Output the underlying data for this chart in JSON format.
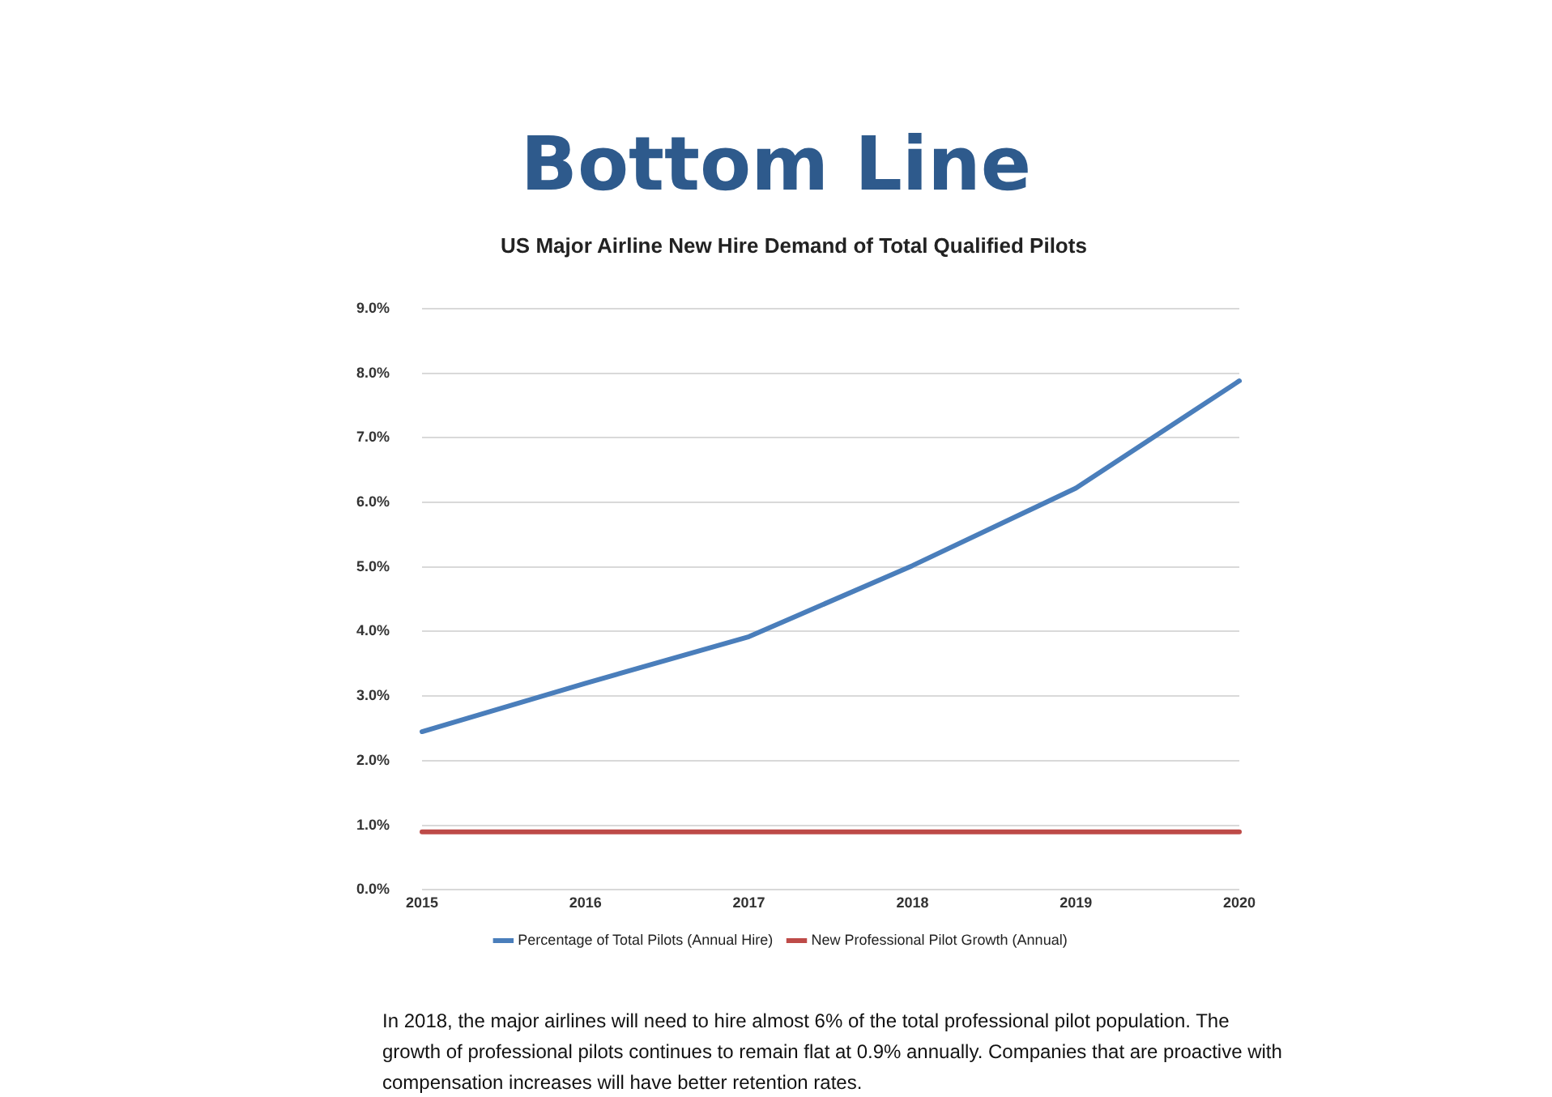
{
  "chart_data": {
    "type": "line",
    "title": "Bottom Line",
    "subtitle": "US Major Airline New Hire Demand of Total Qualified Pilots",
    "categories": [
      "2015",
      "2016",
      "2017",
      "2018",
      "2019",
      "2020"
    ],
    "series": [
      {
        "name": "Percentage of Total Pilots (Annual Hire)",
        "color": "#4a7ebb",
        "values": [
          2.45,
          3.2,
          3.92,
          5.02,
          6.22,
          7.88
        ]
      },
      {
        "name": "New Professional Pilot Growth (Annual)",
        "color": "#be4b48",
        "values": [
          0.9,
          0.9,
          0.9,
          0.9,
          0.9,
          0.9
        ]
      }
    ],
    "ylim": [
      0,
      9
    ],
    "yticks": [
      {
        "value": 0,
        "label": "0.0%"
      },
      {
        "value": 1,
        "label": "1.0%"
      },
      {
        "value": 2,
        "label": "2.0%"
      },
      {
        "value": 3,
        "label": "3.0%"
      },
      {
        "value": 4,
        "label": "4.0%"
      },
      {
        "value": 5,
        "label": "5.0%"
      },
      {
        "value": 6,
        "label": "6.0%"
      },
      {
        "value": 7,
        "label": "7.0%"
      },
      {
        "value": 8,
        "label": "8.0%"
      },
      {
        "value": 9,
        "label": "9.0%"
      }
    ],
    "grid": "y",
    "legend": "bottom",
    "marker": "none",
    "line_style": "solid",
    "annotations": [
      "In 2018, the major airlines will need to hire almost 6% of the total professional pilot population. The growth of professional pilots continues to remain flat at 0.9% annually.  Companies that are proactive with compensation increases will have better retention rates."
    ]
  }
}
